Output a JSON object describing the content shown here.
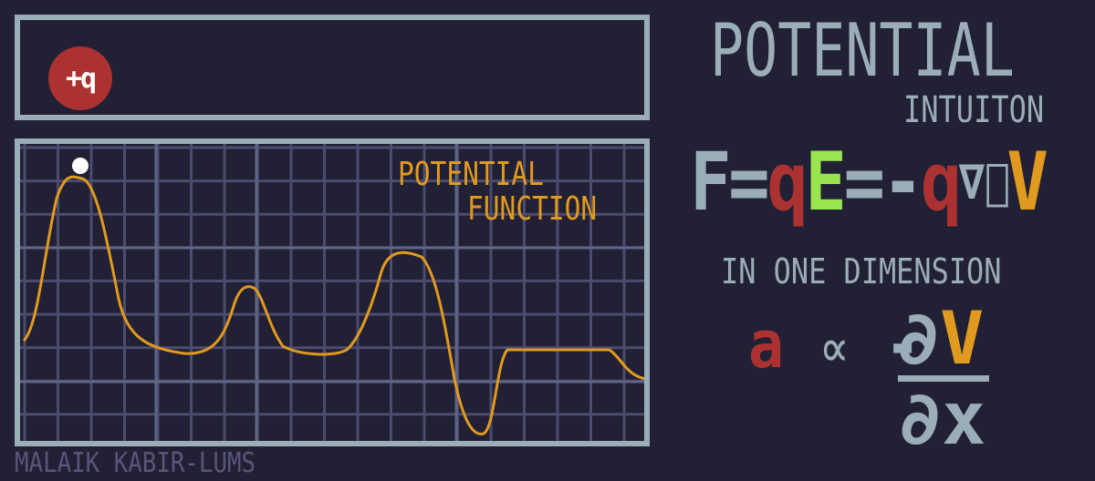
{
  "charge": {
    "label": "+q"
  },
  "graph": {
    "title_line1": "POTENTIAL",
    "title_line2": "FUNCTION"
  },
  "title": {
    "main": "POTENTIAL",
    "sub": "INTUITON"
  },
  "equation1": {
    "F": "F",
    "eq1": "=",
    "q": "q",
    "E": "E",
    "eq2": "=",
    "minus": "-",
    "q2": "q",
    "grad": "∇⃗",
    "V": "V"
  },
  "dimension_label": "IN ONE DIMENSION",
  "equation2": {
    "a": "a",
    "prop": "∝",
    "minus": "-",
    "partial_top": "∂",
    "V": "V",
    "denominator": "∂x"
  },
  "credit": "MALAIK KABIR-LUMS",
  "colors": {
    "background": "#222034",
    "frame": "#9badb7",
    "grid": "#4b4c6e",
    "curve": "#e09a1f",
    "charge": "#ac3232",
    "field": "#99e550",
    "credit": "#59567a"
  }
}
